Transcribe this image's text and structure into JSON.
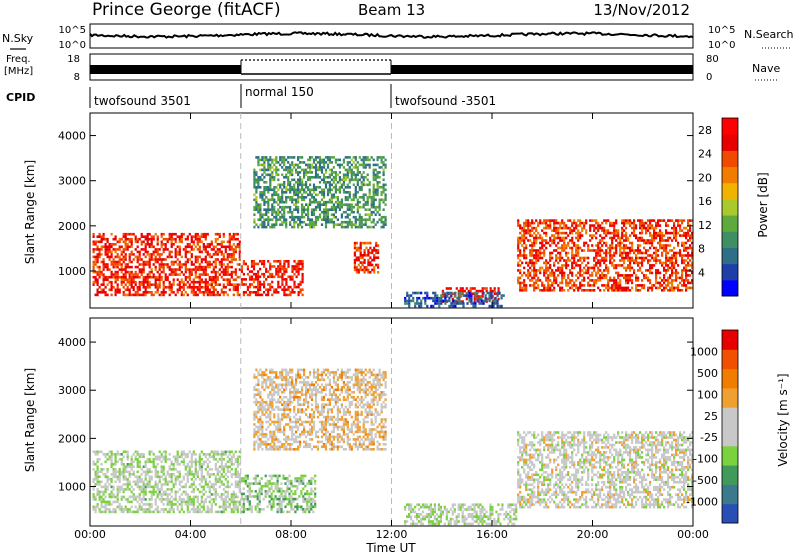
{
  "header": {
    "station": "Prince George (fitACF)",
    "beam": "Beam 13",
    "date": "13/Nov/2012"
  },
  "noise_panel": {
    "left_label": "N.Sky",
    "right_label": "N.Search",
    "left_ticks": [
      "10^5",
      "10^0"
    ],
    "right_ticks": [
      "10^5",
      "10^0"
    ]
  },
  "freq_panel": {
    "left_label_1": "Freq.",
    "left_label_2": "[MHz]",
    "right_label": "Nave",
    "left_ticks": [
      "18",
      "8"
    ],
    "right_ticks": [
      "80",
      "0"
    ]
  },
  "cpid_panel": {
    "label": "CPID",
    "segments": [
      {
        "name": "twofsound 3501",
        "start_hour": 0,
        "end_hour": 6
      },
      {
        "name": "normal 150",
        "start_hour": 6,
        "end_hour": 12
      },
      {
        "name": "twofsound -3501",
        "start_hour": 12,
        "end_hour": 24
      }
    ]
  },
  "chart_data": [
    {
      "type": "heatmap",
      "title": "",
      "xlabel": "Time UT",
      "ylabel": "Slant Range [km]",
      "xlim": [
        0,
        24
      ],
      "ylim": [
        180,
        4500
      ],
      "x_ticks": [
        "00:00",
        "04:00",
        "08:00",
        "12:00",
        "16:00",
        "20:00",
        "00:00"
      ],
      "y_ticks": [
        1000,
        2000,
        3000,
        4000
      ],
      "colorbar": {
        "label": "Power [dB]",
        "ticks": [
          28,
          24,
          20,
          16,
          12,
          8,
          4
        ],
        "range": [
          0,
          30
        ],
        "colors": [
          "#0000ff",
          "#1f3fa8",
          "#2e6e87",
          "#3f8e64",
          "#5faa3c",
          "#a9c92d",
          "#f0b400",
          "#f07d00",
          "#f04a00",
          "#e60000",
          "#ff0000"
        ]
      },
      "echo_regions": [
        {
          "t0": 0.1,
          "t1": 6.0,
          "r0": 500,
          "r1": 1900,
          "value": 25
        },
        {
          "t0": 6.0,
          "t1": 8.5,
          "r0": 500,
          "r1": 1300,
          "value": 26
        },
        {
          "t0": 10.5,
          "t1": 11.5,
          "r0": 1000,
          "r1": 1700,
          "value": 24
        },
        {
          "t0": 14.0,
          "t1": 16.3,
          "r0": 350,
          "r1": 700,
          "value": 27
        },
        {
          "t0": 17.0,
          "t1": 24.0,
          "r0": 600,
          "r1": 2200,
          "value": 24
        },
        {
          "t0": 6.5,
          "t1": 11.8,
          "r0": 2000,
          "r1": 3600,
          "value": 10
        },
        {
          "t0": 12.5,
          "t1": 16.5,
          "r0": 250,
          "r1": 600,
          "value": 6
        }
      ]
    },
    {
      "type": "heatmap",
      "title": "",
      "xlabel": "Time UT",
      "ylabel": "Slant Range [km]",
      "xlim": [
        0,
        24
      ],
      "ylim": [
        180,
        4500
      ],
      "x_ticks": [
        "00:00",
        "04:00",
        "08:00",
        "12:00",
        "16:00",
        "20:00",
        "00:00"
      ],
      "y_ticks": [
        1000,
        2000,
        3000,
        4000
      ],
      "colorbar": {
        "label": "Velocity [m s⁻¹]",
        "ticks": [
          1000,
          500,
          100,
          25,
          -25,
          -100,
          -500,
          -1000
        ],
        "range": [
          -1200,
          1200
        ],
        "colors": [
          "#2850b4",
          "#3b7a8c",
          "#3f9a5c",
          "#7ad23f",
          "#c8c8c8",
          "#c8c8c8",
          "#f0a030",
          "#f07d00",
          "#f05000",
          "#e60000"
        ]
      },
      "echo_regions": [
        {
          "t0": 0.1,
          "t1": 6.0,
          "r0": 500,
          "r1": 1800,
          "value": -150
        },
        {
          "t0": 6.0,
          "t1": 9.0,
          "r0": 500,
          "r1": 1300,
          "value": -300
        },
        {
          "t0": 12.5,
          "t1": 17.0,
          "r0": 250,
          "r1": 700,
          "value": -120
        },
        {
          "t0": 17.0,
          "t1": 24.0,
          "r0": 600,
          "r1": 2200,
          "value": 0
        },
        {
          "t0": 6.5,
          "t1": 11.8,
          "r0": 1800,
          "r1": 3500,
          "value": 200
        }
      ]
    }
  ]
}
